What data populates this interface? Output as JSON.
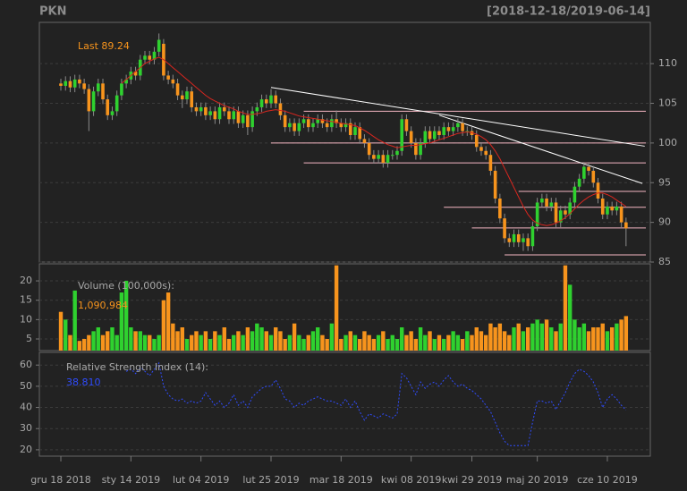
{
  "header": {
    "symbol": "PKN",
    "range": "[2018-12-18/2019-06-14]"
  },
  "chart_data": [
    {
      "type": "candlestick",
      "xlim": [
        -4.6,
        126.2
      ],
      "ylim": [
        85,
        115.2
      ],
      "yticks": [
        85,
        90,
        95,
        100,
        105,
        110
      ],
      "grid": true,
      "axis_side": "right",
      "up_color": "#2fd12f",
      "down_color": "#f7941d",
      "wick_color": "#8a8a8a",
      "last_label": "Last 89.24",
      "open": [
        107.5,
        107.2,
        107.8,
        107.0,
        108.0,
        107.5,
        106.8,
        104.0,
        106.5,
        107.5,
        105.5,
        103.5,
        104.0,
        106.0,
        107.5,
        108.0,
        109.0,
        108.5,
        110.5,
        111.0,
        110.5,
        111.5,
        112.5,
        108.5,
        108.0,
        107.5,
        106.0,
        105.5,
        106.5,
        104.5,
        104.0,
        104.5,
        103.5,
        104.0,
        103.0,
        104.5,
        104.0,
        103.0,
        104.0,
        102.5,
        103.5,
        102.0,
        104.0,
        104.5,
        105.5,
        105.0,
        106.0,
        105.0,
        103.5,
        102.0,
        102.5,
        101.5,
        102.5,
        103.0,
        102.0,
        102.5,
        103.0,
        102.5,
        102.0,
        103.0,
        102.5,
        102.0,
        102.5,
        101.0,
        102.0,
        100.5,
        100.0,
        98.5,
        98.0,
        98.5,
        97.5,
        98.5,
        98.5,
        99.0,
        103.0,
        101.5,
        100.0,
        98.5,
        100.0,
        101.5,
        100.5,
        101.5,
        101.0,
        102.0,
        101.5,
        102.0,
        102.5,
        101.5,
        101.5,
        101.0,
        99.5,
        99.0,
        98.5,
        96.5,
        93.0,
        90.5,
        88.0,
        87.5,
        88.5,
        87.5,
        88.0,
        87.0,
        89.5,
        92.5,
        93.0,
        92.0,
        92.5,
        90.0,
        91.5,
        91.0,
        92.5,
        94.5,
        95.5,
        97.0,
        96.5,
        95.0,
        93.0,
        91.0,
        92.0,
        91.5,
        92.0,
        90.0
      ],
      "high": [
        108.1,
        108.4,
        108.4,
        108.6,
        108.6,
        108.1,
        107.4,
        107.1,
        108.1,
        108.1,
        106.1,
        104.6,
        106.6,
        108.1,
        108.6,
        109.6,
        109.6,
        111.1,
        111.6,
        111.6,
        112.1,
        113.8,
        113.1,
        109.1,
        108.6,
        108.1,
        106.6,
        107.1,
        107.1,
        105.1,
        105.1,
        105.1,
        104.6,
        104.6,
        105.1,
        105.1,
        104.6,
        104.6,
        104.6,
        104.1,
        104.1,
        104.6,
        105.1,
        106.1,
        106.1,
        106.8,
        106.6,
        105.6,
        104.1,
        103.1,
        103.1,
        103.1,
        103.6,
        103.6,
        103.1,
        103.6,
        103.6,
        103.1,
        103.6,
        104.1,
        103.1,
        103.1,
        103.1,
        102.6,
        102.6,
        101.1,
        100.6,
        99.1,
        99.1,
        99.1,
        99.1,
        99.1,
        99.6,
        103.6,
        103.6,
        102.1,
        100.6,
        100.6,
        102.1,
        102.1,
        102.1,
        102.1,
        102.6,
        102.6,
        102.6,
        103.1,
        103.1,
        102.1,
        102.1,
        101.6,
        100.1,
        99.6,
        99.1,
        97.1,
        93.6,
        91.1,
        88.6,
        89.1,
        89.1,
        88.6,
        88.6,
        90.1,
        93.1,
        93.6,
        93.6,
        93.1,
        93.1,
        92.1,
        92.1,
        93.1,
        95.1,
        96.1,
        97.6,
        97.6,
        97.1,
        95.6,
        93.6,
        92.6,
        92.6,
        92.6,
        92.6,
        90.6
      ],
      "low": [
        106.6,
        106.6,
        106.4,
        106.4,
        106.9,
        106.2,
        101.5,
        103.4,
        105.9,
        104.9,
        102.9,
        102.9,
        103.4,
        105.4,
        106.9,
        107.4,
        107.9,
        107.9,
        109.9,
        109.9,
        109.9,
        110.9,
        107.9,
        107.4,
        106.9,
        105.4,
        104.4,
        104.9,
        103.9,
        103.4,
        103.4,
        102.9,
        102.9,
        102.4,
        102.4,
        103.4,
        102.4,
        102.4,
        101.9,
        101.9,
        101.0,
        101.4,
        103.4,
        103.9,
        104.4,
        104.4,
        104.4,
        102.9,
        101.4,
        101.4,
        100.9,
        100.9,
        101.9,
        101.4,
        101.4,
        101.9,
        101.9,
        101.4,
        101.4,
        101.9,
        101.4,
        101.4,
        100.4,
        100.4,
        99.9,
        99.4,
        97.9,
        97.4,
        97.4,
        96.9,
        96.9,
        97.9,
        97.9,
        98.4,
        100.9,
        99.4,
        97.9,
        97.9,
        99.4,
        99.9,
        99.9,
        100.4,
        100.4,
        100.9,
        100.9,
        101.4,
        100.9,
        100.9,
        100.4,
        98.9,
        98.4,
        97.9,
        95.9,
        92.4,
        89.9,
        87.4,
        86.9,
        86.9,
        86.9,
        86.4,
        86.4,
        86.4,
        88.9,
        91.9,
        91.4,
        91.4,
        89.4,
        89.4,
        90.4,
        90.4,
        91.9,
        93.9,
        94.9,
        95.9,
        94.4,
        92.4,
        90.4,
        90.4,
        90.9,
        90.9,
        89.4,
        87.0
      ],
      "close": [
        107.2,
        107.8,
        107.0,
        108.0,
        107.5,
        106.8,
        104.0,
        106.5,
        107.5,
        105.5,
        103.5,
        104.0,
        106.0,
        107.5,
        108.0,
        109.0,
        108.5,
        110.5,
        111.0,
        110.5,
        111.5,
        113.0,
        108.5,
        108.0,
        107.5,
        106.0,
        105.5,
        106.5,
        104.5,
        104.0,
        104.5,
        103.5,
        104.0,
        103.0,
        104.5,
        104.0,
        103.0,
        104.0,
        102.5,
        103.5,
        102.0,
        104.0,
        104.5,
        105.5,
        105.0,
        106.0,
        105.0,
        103.5,
        102.0,
        102.5,
        101.5,
        102.5,
        103.0,
        102.0,
        102.5,
        103.0,
        102.5,
        102.0,
        103.0,
        102.5,
        102.0,
        102.5,
        101.0,
        102.0,
        100.5,
        100.0,
        98.5,
        98.0,
        98.5,
        97.5,
        98.5,
        98.5,
        99.0,
        103.0,
        101.5,
        100.0,
        98.5,
        100.0,
        101.5,
        100.5,
        101.5,
        101.0,
        102.0,
        101.5,
        102.0,
        102.5,
        101.5,
        101.5,
        101.0,
        99.5,
        99.0,
        98.5,
        96.5,
        93.0,
        90.5,
        88.0,
        87.5,
        88.5,
        87.5,
        88.0,
        87.0,
        89.5,
        92.5,
        93.0,
        92.0,
        92.5,
        90.0,
        91.5,
        91.0,
        92.5,
        94.5,
        95.5,
        97.0,
        96.5,
        95.0,
        93.0,
        91.0,
        92.0,
        91.5,
        92.0,
        90.0,
        89.24
      ],
      "sma": [
        null,
        null,
        null,
        null,
        null,
        null,
        null,
        null,
        null,
        null,
        null,
        null,
        null,
        107.5,
        108,
        108.5,
        109,
        109.5,
        110,
        110.3,
        110.6,
        110.8,
        110.5,
        110,
        109.5,
        109,
        108.5,
        108,
        107.5,
        107,
        106.5,
        106,
        105.6,
        105.3,
        105,
        104.7,
        104.5,
        104.3,
        104,
        103.8,
        103.6,
        103.6,
        103.7,
        103.8,
        104,
        104.1,
        104.2,
        104.1,
        104,
        103.8,
        103.6,
        103.4,
        103.3,
        103.2,
        103.1,
        103,
        102.9,
        102.8,
        102.7,
        102.6,
        102.5,
        102.4,
        102.3,
        102.2,
        101.9,
        101.6,
        101.2,
        100.8,
        100.4,
        100.1,
        99.8,
        99.6,
        99.4,
        99.5,
        99.6,
        99.7,
        99.7,
        99.8,
        99.9,
        100,
        100.2,
        100.4,
        100.6,
        100.8,
        101,
        101.2,
        101.3,
        101.4,
        101.3,
        101.1,
        100.8,
        100.4,
        99.8,
        99,
        98,
        96.8,
        95.6,
        94.4,
        93.2,
        92,
        91,
        90.3,
        89.9,
        89.7,
        89.6,
        89.7,
        89.9,
        90.2,
        90.6,
        91.1,
        91.7,
        92.3,
        92.8,
        93.2,
        93.5,
        93.7,
        93.7,
        93.5,
        93.2,
        92.8,
        92.4,
        92.0
      ],
      "sma_color": "#d8261f",
      "support_lines": [
        {
          "value": 104.0,
          "from": 52
        },
        {
          "value": 100.0,
          "from": 45
        },
        {
          "value": 97.5,
          "from": 52
        },
        {
          "value": 93.9,
          "from": 98
        },
        {
          "value": 91.9,
          "from": 82
        },
        {
          "value": 89.3,
          "from": 88
        },
        {
          "value": 85.9,
          "from": 95
        }
      ],
      "support_color": "#f4b6c2",
      "trend_lines": [
        {
          "x": [
            45,
            125
          ],
          "y": [
            107.0,
            99.6
          ]
        },
        {
          "x": [
            81,
            124.5
          ],
          "y": [
            103.5,
            94.9
          ]
        }
      ],
      "trend_color": "#ffffff"
    },
    {
      "type": "volume",
      "title": "Volume (100,000s):",
      "last_label": "1,090,984",
      "xlim": [
        -4.6,
        126.2
      ],
      "ylim": [
        2,
        24.4
      ],
      "yticks": [
        5,
        10,
        15,
        20
      ],
      "grid": true,
      "axis_side": "left",
      "values": [
        12,
        10,
        6,
        17.5,
        4.5,
        5,
        6,
        7,
        8,
        6,
        7,
        8,
        6,
        17,
        20,
        8,
        7,
        7,
        6,
        6,
        5,
        6,
        15,
        17,
        9,
        7,
        8,
        5,
        6,
        7,
        6,
        7,
        5,
        7,
        6,
        8,
        5,
        6,
        7,
        6,
        8,
        7,
        9,
        8,
        7,
        6,
        8,
        7,
        5,
        6,
        9,
        6,
        5,
        6,
        7,
        8,
        6,
        5,
        9,
        24,
        5,
        6,
        7,
        6,
        5,
        7,
        6,
        5,
        6,
        7,
        5,
        6,
        5,
        8,
        6,
        7,
        5,
        8,
        6,
        7,
        5,
        6,
        5,
        6,
        7,
        6,
        5,
        7,
        6,
        8,
        7,
        6,
        9,
        8,
        9,
        7,
        6,
        8,
        9,
        7,
        8,
        9,
        10,
        9,
        10,
        8,
        7,
        9,
        24,
        19,
        10,
        8,
        9,
        7,
        8,
        8,
        9,
        7,
        8,
        9,
        10,
        10.90984
      ]
    },
    {
      "type": "line",
      "title": "Relative Strength Index (14):",
      "last_label": "38.810",
      "color": "#2f4cff",
      "xlim": [
        -4.6,
        126.2
      ],
      "ylim": [
        17,
        66
      ],
      "yticks": [
        20,
        30,
        40,
        50,
        60
      ],
      "grid": true,
      "axis_side": "left",
      "values": [
        null,
        null,
        null,
        null,
        null,
        null,
        null,
        null,
        null,
        null,
        null,
        null,
        null,
        null,
        57,
        58,
        56,
        59,
        57,
        55,
        58,
        61,
        50,
        46,
        44,
        43,
        44,
        42,
        43,
        42,
        43,
        47,
        44,
        41,
        43,
        40,
        42,
        46,
        41,
        43,
        40,
        45,
        47,
        49,
        50,
        50,
        53,
        49,
        44,
        43,
        40,
        42,
        41,
        43,
        44,
        45,
        44,
        43,
        43,
        42,
        41,
        44,
        40,
        43,
        38,
        34,
        37,
        36,
        35,
        37,
        36,
        35,
        37,
        56,
        54,
        50,
        46,
        52,
        49,
        51,
        52,
        50,
        53,
        55,
        52,
        50,
        51,
        49,
        48,
        46,
        44,
        41,
        38,
        33,
        28,
        24,
        22,
        22,
        22,
        22,
        22,
        33,
        43,
        43,
        42,
        43,
        39,
        43,
        47,
        52,
        56,
        58,
        57,
        55,
        52,
        47,
        40,
        44,
        46,
        44,
        41,
        38.81
      ],
      "xticks": [
        {
          "value": 0,
          "label": "gru 18 2018"
        },
        {
          "value": 15,
          "label": "sty 14 2019"
        },
        {
          "value": 30,
          "label": "lut 04 2019"
        },
        {
          "value": 45,
          "label": "lut 25 2019"
        },
        {
          "value": 60,
          "label": "mar 18 2019"
        },
        {
          "value": 75,
          "label": "kwi 08 2019"
        },
        {
          "value": 88,
          "label": "kwi 29 2019"
        },
        {
          "value": 102,
          "label": "maj 20 2019"
        },
        {
          "value": 117,
          "label": "cze 10 2019"
        }
      ]
    }
  ]
}
